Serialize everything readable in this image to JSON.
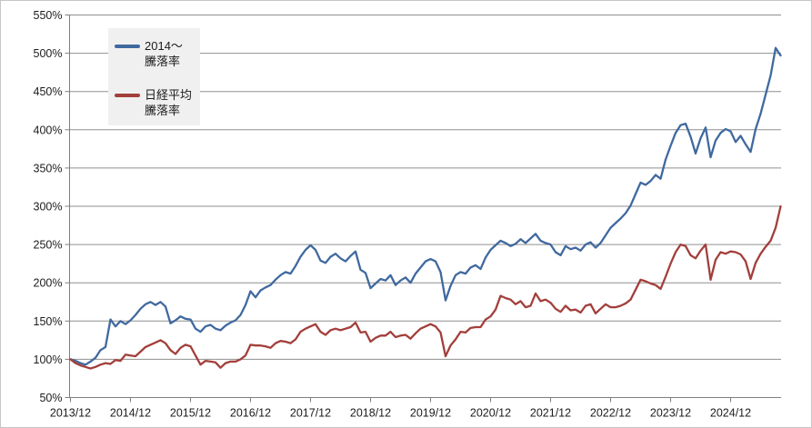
{
  "chart_data": {
    "type": "line",
    "title": "",
    "x_unit": "month",
    "x_start_label": "2013/12",
    "x_end_label_approx": "2025/10",
    "x_tick_labels": [
      "2013/12",
      "2014/12",
      "2015/12",
      "2016/12",
      "2017/12",
      "2018/12",
      "2019/12",
      "2020/12",
      "2021/12",
      "2022/12",
      "2023/12",
      "2024/12"
    ],
    "x_tick_month_indices": [
      0,
      12,
      24,
      36,
      48,
      60,
      72,
      84,
      96,
      108,
      120,
      132
    ],
    "ylim": [
      50,
      550
    ],
    "y_tick_values": [
      50,
      100,
      150,
      200,
      250,
      300,
      350,
      400,
      450,
      500,
      550
    ],
    "y_tick_labels": [
      "50%",
      "100%",
      "150%",
      "200%",
      "250%",
      "300%",
      "350%",
      "400%",
      "450%",
      "500%",
      "550%"
    ],
    "grid": "horizontal",
    "legend_position": "top-left-inside",
    "series": [
      {
        "name": "2014〜騰落率",
        "legend_lines": [
          "2014〜",
          "騰落率"
        ],
        "color": "#40699f",
        "monthly_values": [
          100,
          98,
          95,
          93,
          97,
          102,
          112,
          116,
          152,
          143,
          150,
          146,
          151,
          158,
          166,
          172,
          175,
          171,
          175,
          169,
          147,
          151,
          156,
          153,
          152,
          140,
          136,
          143,
          145,
          140,
          138,
          144,
          148,
          151,
          158,
          171,
          189,
          181,
          190,
          194,
          197,
          204,
          210,
          214,
          212,
          222,
          234,
          243,
          249,
          243,
          229,
          226,
          234,
          238,
          232,
          228,
          235,
          241,
          217,
          213,
          193,
          199,
          205,
          203,
          210,
          197,
          203,
          207,
          200,
          212,
          220,
          228,
          231,
          228,
          214,
          177,
          196,
          210,
          214,
          212,
          220,
          223,
          218,
          233,
          243,
          249,
          255,
          252,
          248,
          251,
          257,
          252,
          258,
          264,
          255,
          252,
          250,
          240,
          236,
          248,
          244,
          246,
          242,
          250,
          253,
          246,
          252,
          262,
          272,
          278,
          284,
          291,
          301,
          316,
          331,
          328,
          333,
          341,
          336,
          361,
          379,
          396,
          406,
          408,
          391,
          369,
          389,
          403,
          364,
          386,
          396,
          401,
          398,
          384,
          392,
          381,
          371,
          401,
          421,
          446,
          471,
          507,
          497
        ]
      },
      {
        "name": "日経平均騰落率",
        "legend_lines": [
          "日経平均",
          "騰落率"
        ],
        "color": "#a23f3b",
        "monthly_values": [
          100,
          95,
          92,
          90,
          88,
          90,
          93,
          95,
          94,
          99,
          98,
          106,
          105,
          104,
          110,
          116,
          119,
          122,
          125,
          121,
          112,
          107,
          115,
          119,
          117,
          105,
          93,
          98,
          97,
          96,
          89,
          95,
          97,
          97,
          100,
          105,
          119,
          118,
          118,
          117,
          115,
          121,
          124,
          123,
          121,
          126,
          136,
          140,
          143,
          146,
          136,
          132,
          138,
          140,
          138,
          140,
          142,
          148,
          135,
          136,
          123,
          128,
          131,
          131,
          136,
          129,
          131,
          132,
          127,
          134,
          140,
          143,
          146,
          143,
          135,
          104,
          118,
          126,
          136,
          135,
          141,
          142,
          142,
          152,
          156,
          165,
          183,
          180,
          178,
          172,
          176,
          168,
          170,
          186,
          176,
          178,
          174,
          166,
          162,
          170,
          164,
          165,
          161,
          170,
          172,
          160,
          166,
          172,
          168,
          168,
          170,
          173,
          178,
          191,
          204,
          202,
          199,
          197,
          192,
          208,
          225,
          240,
          250,
          248,
          236,
          232,
          242,
          250,
          204,
          230,
          240,
          238,
          241,
          240,
          237,
          228,
          205,
          226,
          238,
          247,
          255,
          272,
          300
        ]
      }
    ]
  },
  "colors": {
    "background": "#ffffff",
    "frame_border": "#c6c6c6",
    "grid": "#8f8f8f",
    "axis": "#7f7f7f",
    "tick_label": "#1c1c1c",
    "legend_bg": "#f0f0f0"
  }
}
